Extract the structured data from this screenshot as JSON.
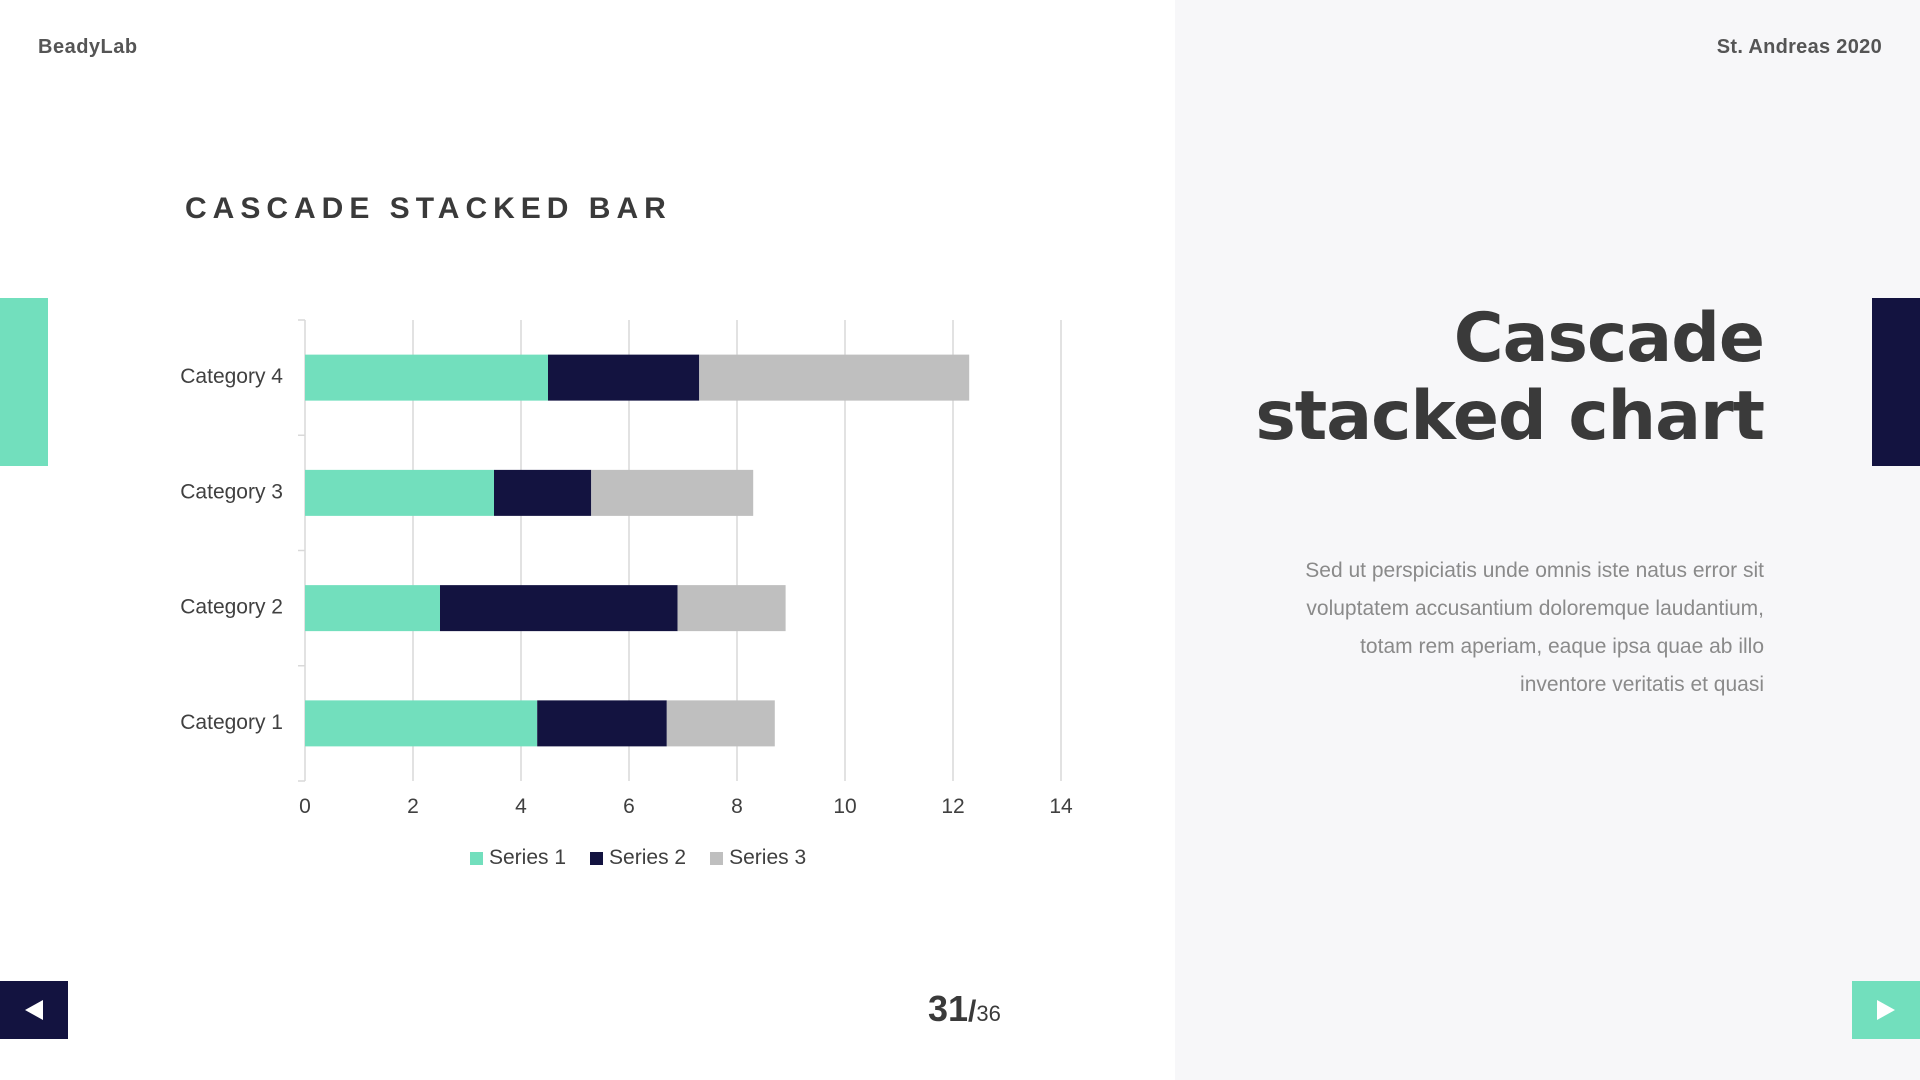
{
  "header": {
    "brand": "BeadyLab",
    "event": "St. Andreas 2020"
  },
  "slide": {
    "heading": "Cascade stacked chart",
    "body": "Sed ut perspiciatis unde omnis iste natus error sit voluptatem accusantium doloremque laudantium, totam rem aperiam, eaque ipsa quae ab illo inventore veritatis et quasi"
  },
  "chart_data": {
    "type": "bar",
    "orientation": "horizontal",
    "stacked": true,
    "title": "CASCADE STACKED BAR",
    "categories": [
      "Category 1",
      "Category 2",
      "Category 3",
      "Category 4"
    ],
    "series": [
      {
        "name": "Series 1",
        "color": "#72dfbd",
        "values": [
          4.3,
          2.5,
          3.5,
          4.5
        ]
      },
      {
        "name": "Series 2",
        "color": "#131340",
        "values": [
          2.4,
          4.4,
          1.8,
          2.8
        ]
      },
      {
        "name": "Series 3",
        "color": "#bfbfbf",
        "values": [
          2.0,
          2.0,
          3.0,
          5.0
        ]
      }
    ],
    "xlim": [
      0,
      14
    ],
    "xticks": [
      0,
      2,
      4,
      6,
      8,
      10,
      12,
      14
    ],
    "grid": true,
    "legend_position": "bottom"
  },
  "navigation": {
    "current_page": "31",
    "separator": "/",
    "total_pages": "36",
    "prev_icon": "triangle-left-icon",
    "next_icon": "triangle-right-icon"
  },
  "colors": {
    "accent_mint": "#72dfbd",
    "accent_navy": "#131340",
    "neutral_gray": "#bfbfbf"
  }
}
